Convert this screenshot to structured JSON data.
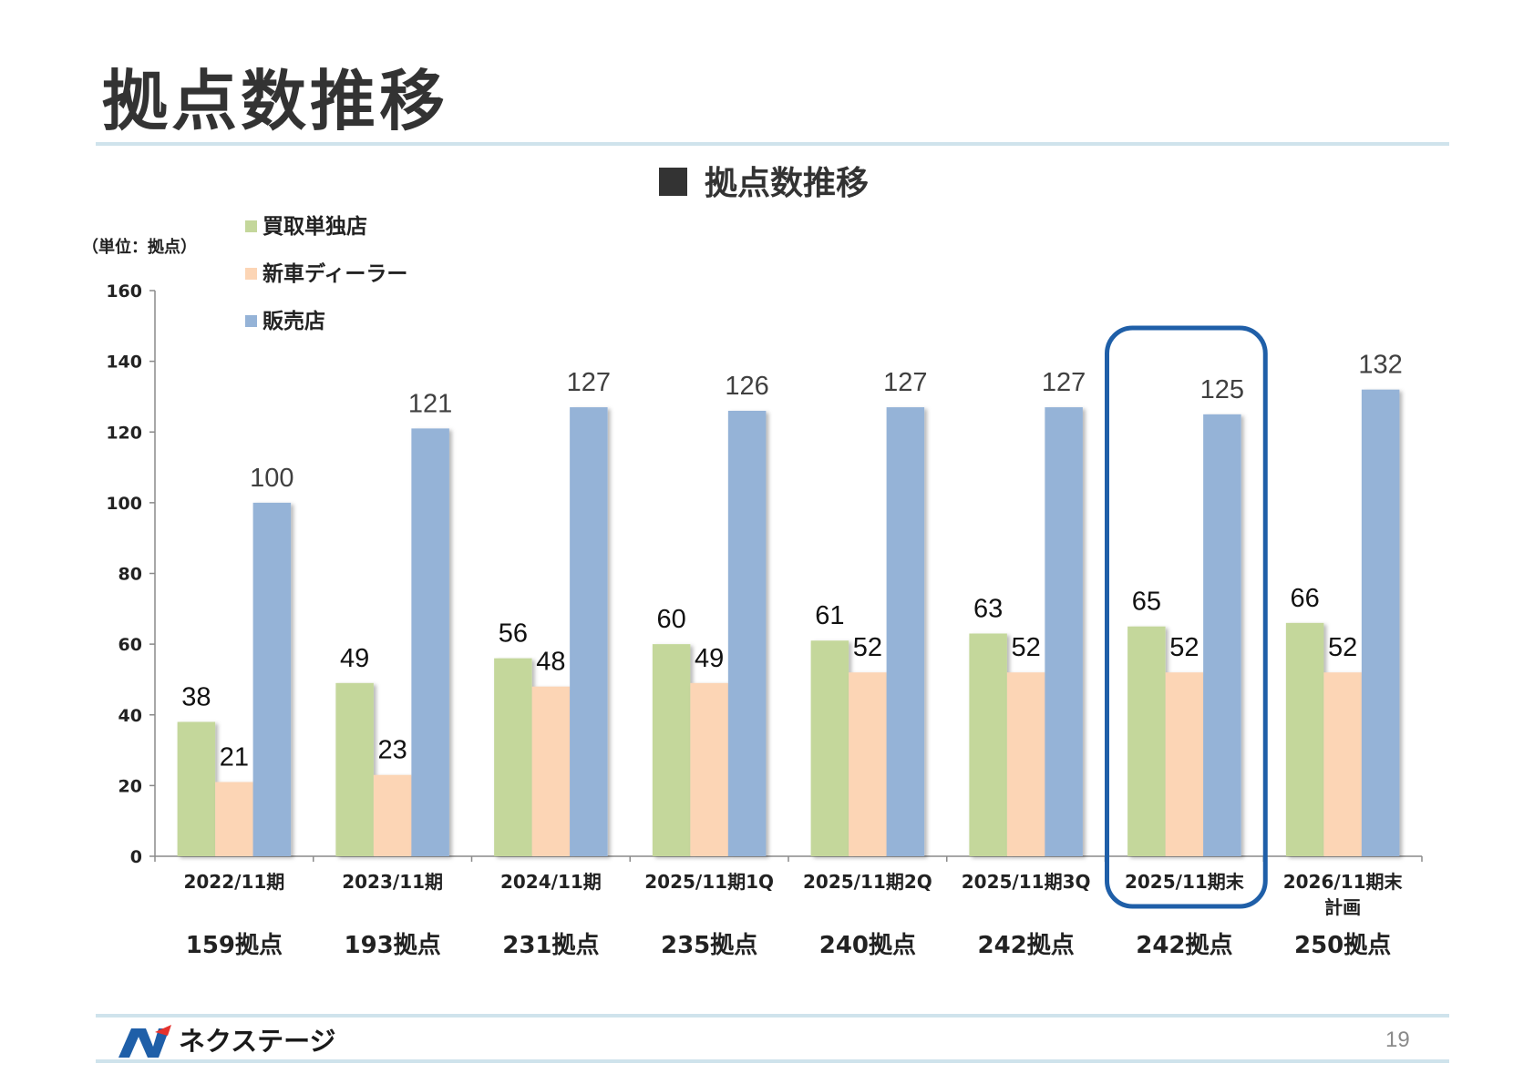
{
  "page": {
    "title": "拠点数推移",
    "page_number": "19",
    "logo_text": "ネクステージ"
  },
  "chart_data": {
    "type": "bar",
    "title": "拠点数推移",
    "title_marker": "■",
    "unit_label": "（単位：拠点）",
    "ylim": [
      0,
      160
    ],
    "yticks": [
      0,
      20,
      40,
      60,
      80,
      100,
      120,
      140,
      160
    ],
    "categories": [
      "2022/11期",
      "2023/11期",
      "2024/11期",
      "2025/11期1Q",
      "2025/11期2Q",
      "2025/11期3Q",
      "2025/11期末",
      "2026/11期末\n計画"
    ],
    "totals": [
      "159拠点",
      "193拠点",
      "231拠点",
      "235拠点",
      "240拠点",
      "242拠点",
      "242拠点",
      "250拠点"
    ],
    "highlight_index": 6,
    "legend_position": "top-left",
    "series": [
      {
        "name": "買取単独店",
        "color": "#c4d79b",
        "values": [
          38,
          49,
          56,
          60,
          61,
          63,
          65,
          66
        ]
      },
      {
        "name": "新車ディーラー",
        "color": "#fcd5b5",
        "values": [
          21,
          23,
          48,
          49,
          52,
          52,
          52,
          52
        ]
      },
      {
        "name": "販売店",
        "color": "#95b3d7",
        "values": [
          100,
          121,
          127,
          126,
          127,
          127,
          125,
          132
        ]
      }
    ],
    "highlight_color": "#1f5fa8"
  }
}
